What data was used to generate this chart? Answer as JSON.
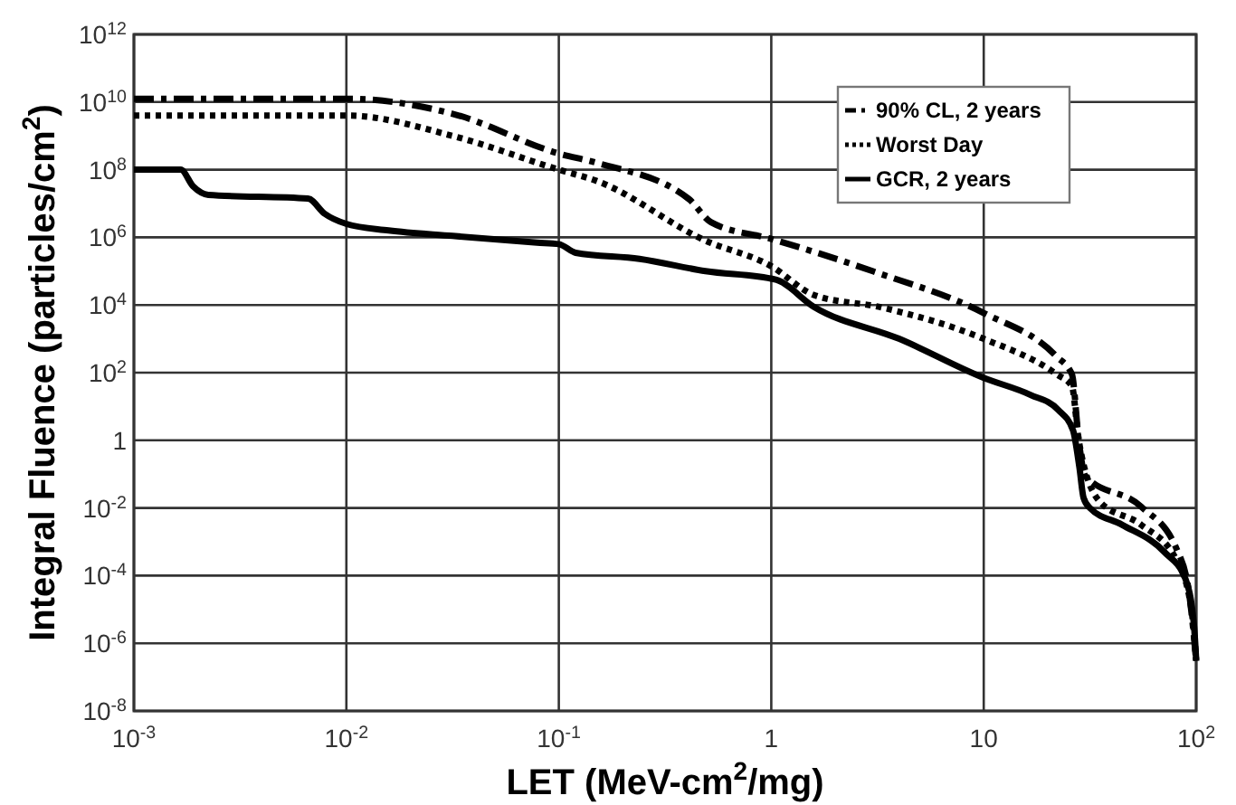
{
  "chart_data": {
    "type": "line",
    "xlabel": "LET (MeV-cm$^{2}$/mg)",
    "ylabel": "Integral Fluence (particles/cm$^{2}$)",
    "log": "xy",
    "grid": true,
    "legend": "top right",
    "xlim": [
      0.001,
      100
    ],
    "xticks": [
      {
        "value": 0.001,
        "label": "10$^{-3}$"
      },
      {
        "value": 0.01,
        "label": "10$^{-2}$"
      },
      {
        "value": 0.1,
        "label": "10$^{-1}$"
      },
      1,
      10,
      {
        "value": 100,
        "label": "10$^{2}$"
      }
    ],
    "ylim": [
      1e-08,
      1000000000000.0
    ],
    "yticks": [
      {
        "value": 1e-08,
        "label": "10$^{-8}$"
      },
      {
        "value": 1e-06,
        "label": "10$^{-6}$"
      },
      {
        "value": 0.0001,
        "label": "10$^{-4}$"
      },
      {
        "value": 0.01,
        "label": "10$^{-2}$"
      },
      1,
      {
        "value": 100,
        "label": "10$^{2}$"
      },
      {
        "value": 10000,
        "label": "10$^{4}$"
      },
      {
        "value": 1000000.0,
        "label": "10$^{6}$"
      },
      {
        "value": 100000000.0,
        "label": "10$^{8}$"
      },
      {
        "value": 10000000000.0,
        "label": "10$^{10}$"
      },
      {
        "value": 1000000000000.0,
        "label": "10$^{12}$"
      }
    ],
    "series": [
      {
        "name": "90% CL, 2 years",
        "color": "#000000",
        "line_style": "dashed",
        "x": [
          0.001,
          0.01,
          0.0316,
          0.1,
          0.15,
          0.41,
          0.52,
          1,
          3,
          10,
          22,
          26,
          28,
          30,
          55,
          81,
          93,
          100
        ],
        "values": [
          12500000000.0,
          12500000000.0,
          4500000000.0,
          300000000.0,
          160000000.0,
          13500000.0,
          2800000.0,
          900000.0,
          100000.0,
          5800,
          300,
          90,
          1,
          0.09,
          0.011,
          0.0006,
          2.5e-05,
          3e-07
        ]
      },
      {
        "name": "Worst Day",
        "color": "#000000",
        "line_style": "dotted",
        "x": [
          0.001,
          0.01,
          0.0316,
          0.1,
          0.15,
          0.49,
          1,
          1.58,
          3.3,
          10,
          22,
          26,
          28,
          35,
          55,
          81,
          95,
          100
        ],
        "values": [
          4000000000.0,
          4000000000.0,
          1000000000.0,
          100000000.0,
          47000000.0,
          800000.0,
          140000.0,
          20000,
          8500,
          1000,
          90,
          40,
          1,
          0.016,
          0.0032,
          0.00028,
          1e-05,
          3e-07
        ]
      },
      {
        "name": "GCR, 2 years",
        "color": "#000000",
        "line_style": "solid",
        "x": [
          0.001,
          0.00166,
          0.0019,
          0.00224,
          0.0066,
          0.0079,
          0.01,
          0.0158,
          0.0316,
          0.079,
          0.1,
          0.12,
          0.24,
          0.49,
          1.05,
          1.58,
          4,
          10,
          16.6,
          22.4,
          26.3,
          28.2,
          29.5,
          31.6,
          44.7,
          70.8,
          89,
          97.7,
          100
        ],
        "values": [
          100000000.0,
          100000000.0,
          32000000.0,
          18000000.0,
          14000000.0,
          5000000.0,
          2500000.0,
          1600000.0,
          1100000.0,
          700000.0,
          630000.0,
          350000.0,
          230000.0,
          100000.0,
          56000,
          9000,
          1000,
          70,
          22,
          8,
          2,
          0.16,
          0.02,
          0.01,
          0.0032,
          0.0005,
          8e-05,
          3.2e-06,
          3.2e-07
        ]
      }
    ]
  }
}
